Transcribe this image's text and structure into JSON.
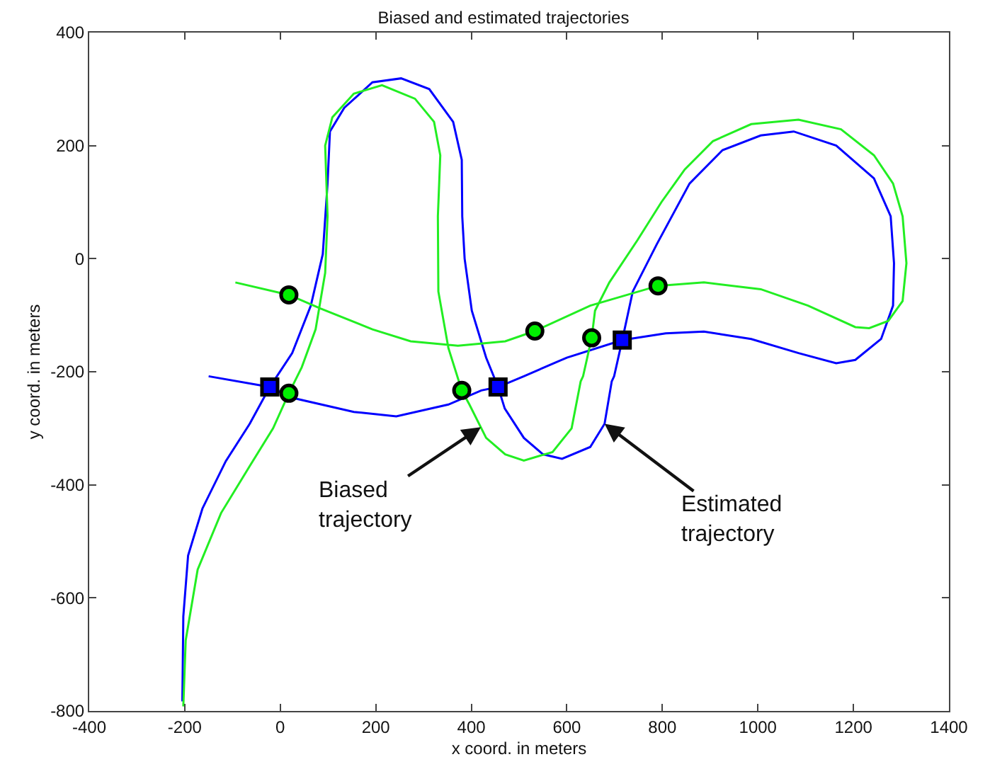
{
  "chart_data": {
    "type": "line",
    "title": "Biased and estimated trajectories",
    "xlabel": "x coord. in meters",
    "ylabel": "y coord. in meters",
    "xlim": [
      -400,
      1400
    ],
    "xticks": [
      -400,
      -200,
      0,
      200,
      400,
      600,
      800,
      1000,
      1200,
      1400
    ],
    "ylim": [
      -800,
      400
    ],
    "yticks": [
      -800,
      -600,
      -400,
      -200,
      0,
      200,
      400
    ],
    "grid": false,
    "series": [
      {
        "marker": "none",
        "color": "#0000ff",
        "x": [
          -205,
          -203,
          -193,
          -163,
          -114,
          -64,
          -22,
          25,
          64,
          89,
          99,
          104,
          134,
          193,
          253,
          312,
          362,
          380,
          381,
          386,
          401,
          431,
          456,
          470,
          510,
          550,
          590,
          649,
          679,
          694,
          699,
          716,
          738,
          788,
          857,
          926,
          1006,
          1075,
          1164,
          1243,
          1278,
          1285,
          1283,
          1258,
          1204,
          1164,
          1085,
          986,
          887,
          807,
          716,
          600,
          510,
          456,
          421,
          352,
          243,
          154,
          25,
          -22,
          -150
        ],
        "values": [
          -783,
          -633,
          -525,
          -442,
          -358,
          -292,
          -227,
          -167,
          -83,
          8,
          133,
          225,
          267,
          312,
          319,
          300,
          242,
          175,
          75,
          0,
          -92,
          -175,
          -227,
          -265,
          -317,
          -346,
          -354,
          -333,
          -292,
          -217,
          -208,
          -144,
          -58,
          25,
          133,
          192,
          218,
          225,
          200,
          142,
          75,
          -8,
          -83,
          -142,
          -179,
          -185,
          -167,
          -142,
          -129,
          -132,
          -144,
          -175,
          -208,
          -227,
          -233,
          -258,
          -279,
          -271,
          -246,
          -227,
          -208
        ]
      },
      {
        "marker": "none",
        "color": "#22ee22",
        "x": [
          -203,
          -198,
          -173,
          -124,
          -64,
          -15,
          18,
          45,
          74,
          94,
          99,
          94,
          109,
          154,
          213,
          282,
          322,
          335,
          330,
          331,
          352,
          380,
          396,
          431,
          471,
          510,
          570,
          610,
          629,
          634,
          652,
          659,
          689,
          748,
          798,
          847,
          906,
          986,
          1085,
          1174,
          1243,
          1283,
          1303,
          1311,
          1303,
          1273,
          1233,
          1204,
          1105,
          1006,
          887,
          791,
          649,
          533,
          471,
          372,
          273,
          193,
          84,
          18,
          -94
        ],
        "values": [
          -792,
          -675,
          -550,
          -450,
          -367,
          -300,
          -238,
          -192,
          -125,
          -25,
          75,
          200,
          250,
          292,
          307,
          283,
          242,
          183,
          75,
          -58,
          -158,
          -233,
          -258,
          -317,
          -346,
          -357,
          -342,
          -300,
          -217,
          -208,
          -140,
          -92,
          -42,
          33,
          100,
          158,
          208,
          238,
          246,
          229,
          183,
          133,
          75,
          -8,
          -75,
          -110,
          -123,
          -121,
          -83,
          -54,
          -42,
          -48,
          -83,
          -128,
          -146,
          -154,
          -146,
          -125,
          -88,
          -64,
          -42
        ]
      },
      {
        "type": "scatter",
        "marker": "square",
        "color": "#0000ff",
        "x": [
          -22,
          456,
          716
        ],
        "values": [
          -227,
          -227,
          -144
        ]
      },
      {
        "type": "scatter",
        "marker": "circle",
        "color": "#00ee00",
        "x": [
          18,
          18,
          380,
          533,
          652,
          791
        ],
        "values": [
          -64,
          -238,
          -233,
          -128,
          -140,
          -48
        ]
      }
    ],
    "annotations": [
      {
        "text": "Biased\ntrajectory",
        "x": 420,
        "y": -298
      },
      {
        "text": "Estimated\ntrajectory",
        "x": 679,
        "y": -292
      }
    ]
  }
}
